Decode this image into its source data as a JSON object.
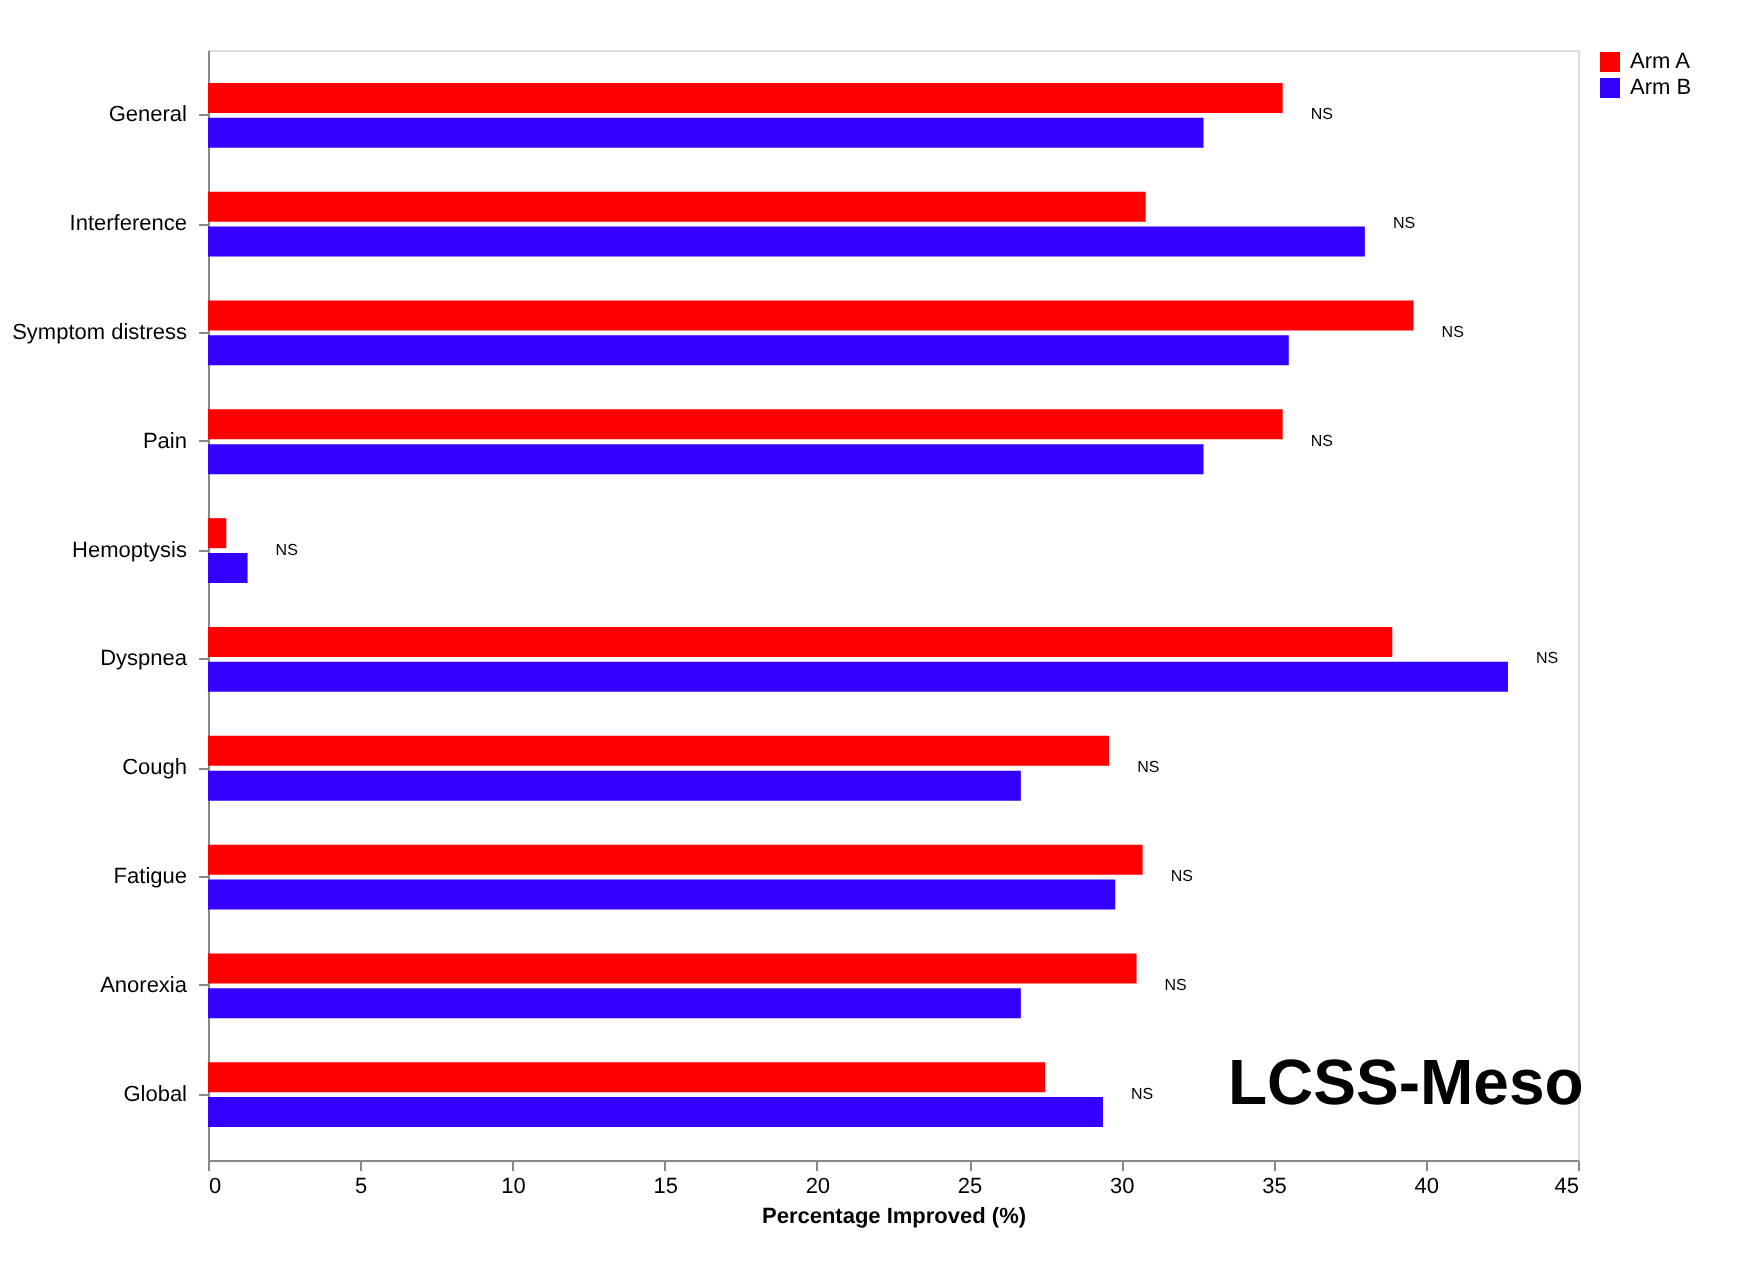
{
  "chart_data": {
    "type": "bar",
    "orientation": "horizontal",
    "xlabel": "Percentage Improved (%)",
    "categories": [
      "General",
      "Interference",
      "Symptom distress",
      "Pain",
      "Hemoptysis",
      "Dyspnea",
      "Cough",
      "Fatigue",
      "Anorexia",
      "Global"
    ],
    "series": [
      {
        "name": "Arm A",
        "color": "#ff0000",
        "values": [
          35.3,
          30.8,
          39.6,
          35.3,
          0.6,
          38.9,
          29.6,
          30.7,
          30.5,
          27.5
        ]
      },
      {
        "name": "Arm B",
        "color": "#3300ff",
        "values": [
          32.7,
          38.0,
          35.5,
          32.7,
          1.3,
          42.7,
          26.7,
          29.8,
          26.7,
          29.4
        ]
      }
    ],
    "xlim": [
      0,
      45
    ],
    "xticks": [
      0,
      5,
      10,
      15,
      20,
      25,
      30,
      35,
      40,
      45
    ],
    "grid": false,
    "legend": "top right",
    "annotations": [
      {
        "text": "NS",
        "x": 35.3,
        "y": "General"
      },
      {
        "text": "NS",
        "x": 38.0,
        "y": "Interference"
      },
      {
        "text": "NS",
        "x": 39.6,
        "y": "Symptom distress"
      },
      {
        "text": "NS",
        "x": 35.3,
        "y": "Pain"
      },
      {
        "text": "NS",
        "x": 1.3,
        "y": "Hemoptysis"
      },
      {
        "text": "NS",
        "x": 42.7,
        "y": "Dyspnea"
      },
      {
        "text": "NS",
        "x": 29.6,
        "y": "Cough"
      },
      {
        "text": "NS",
        "x": 30.7,
        "y": "Fatigue"
      },
      {
        "text": "NS",
        "x": 30.5,
        "y": "Anorexia"
      },
      {
        "text": "NS",
        "x": 29.4,
        "y": "Global"
      },
      "LCSS-Meso"
    ]
  }
}
